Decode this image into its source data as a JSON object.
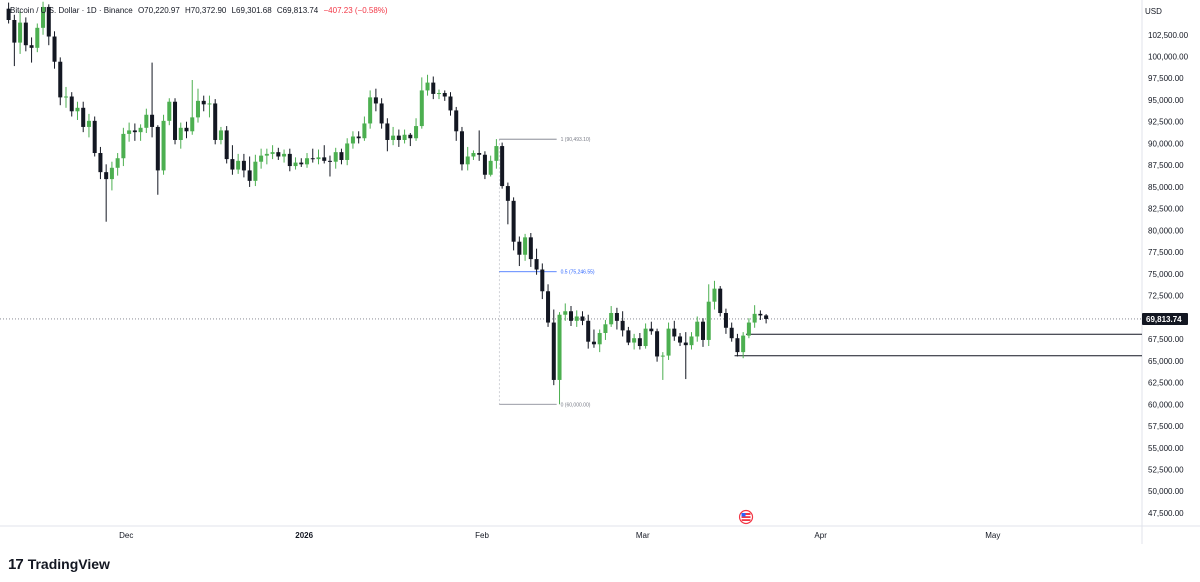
{
  "legend": {
    "symbol": "Bitcoin / U.S. Dollar · 1D · Binance",
    "open": "O70,220.97",
    "high": "H70,372.90",
    "low": "L69,301.68",
    "close": "C69,813.74",
    "change": "−407.23 (−0.58%)"
  },
  "branding": {
    "logo": "TradingView",
    "icon": "tradingview-logo-icon"
  },
  "colors": {
    "up": "#4caf50",
    "down": "#131722",
    "fib_mid": "#2962ff"
  },
  "chart_data": {
    "type": "candlestick",
    "currency": "USD",
    "ylim": [
      46000,
      106500
    ],
    "y_ticks": [
      47500,
      50000,
      52500,
      55000,
      57500,
      60000,
      62500,
      65000,
      67500,
      70000,
      72500,
      75000,
      77500,
      80000,
      82500,
      85000,
      87500,
      90000,
      92500,
      95000,
      97500,
      100000,
      102500
    ],
    "y_tick_labels": [
      "47,500.00",
      "50,000.00",
      "52,500.00",
      "55,000.00",
      "57,500.00",
      "60,000.00",
      "62,500.00",
      "65,000.00",
      "67,500.00",
      "70,000.00",
      "72,500.00",
      "75,000.00",
      "77,500.00",
      "80,000.00",
      "82,500.00",
      "85,000.00",
      "87,500.00",
      "90,000.00",
      "92,500.00",
      "95,000.00",
      "97,500.00",
      "100,000.00",
      "102,500.00"
    ],
    "x_ticks": [
      {
        "label": "Dec",
        "date": "2025-12-01",
        "bold": false
      },
      {
        "label": "2026",
        "date": "2026-01-01",
        "bold": true
      },
      {
        "label": "Feb",
        "date": "2026-02-01",
        "bold": false
      },
      {
        "label": "Mar",
        "date": "2026-03-01",
        "bold": false
      },
      {
        "label": "Apr",
        "date": "2026-04-01",
        "bold": false
      },
      {
        "label": "May",
        "date": "2026-05-01",
        "bold": false
      }
    ],
    "x_range": [
      "2025-11-09",
      "2026-05-27"
    ],
    "last_price": 69813.74,
    "last_price_label": "69,813.74",
    "candles": [
      {
        "d": "2025-11-10",
        "o": 105500,
        "h": 106200,
        "l": 103800,
        "c": 104200
      },
      {
        "d": "2025-11-11",
        "o": 104200,
        "h": 104800,
        "l": 98900,
        "c": 101600
      },
      {
        "d": "2025-11-12",
        "o": 101600,
        "h": 105200,
        "l": 100300,
        "c": 103900
      },
      {
        "d": "2025-11-13",
        "o": 103900,
        "h": 104500,
        "l": 100600,
        "c": 101300
      },
      {
        "d": "2025-11-14",
        "o": 101300,
        "h": 102200,
        "l": 99300,
        "c": 101000
      },
      {
        "d": "2025-11-15",
        "o": 101000,
        "h": 103800,
        "l": 100500,
        "c": 103300
      },
      {
        "d": "2025-11-16",
        "o": 103300,
        "h": 106300,
        "l": 102500,
        "c": 105700
      },
      {
        "d": "2025-11-17",
        "o": 105700,
        "h": 106000,
        "l": 101300,
        "c": 102300
      },
      {
        "d": "2025-11-18",
        "o": 102300,
        "h": 102900,
        "l": 98600,
        "c": 99400
      },
      {
        "d": "2025-11-19",
        "o": 99400,
        "h": 99900,
        "l": 94400,
        "c": 95300
      },
      {
        "d": "2025-11-20",
        "o": 95300,
        "h": 96500,
        "l": 94100,
        "c": 95400
      },
      {
        "d": "2025-11-21",
        "o": 95400,
        "h": 95900,
        "l": 93100,
        "c": 93700
      },
      {
        "d": "2025-11-22",
        "o": 93700,
        "h": 94800,
        "l": 92700,
        "c": 94100
      },
      {
        "d": "2025-11-23",
        "o": 94100,
        "h": 94800,
        "l": 91300,
        "c": 91900
      },
      {
        "d": "2025-11-24",
        "o": 91900,
        "h": 93400,
        "l": 90700,
        "c": 92600
      },
      {
        "d": "2025-11-25",
        "o": 92600,
        "h": 93100,
        "l": 88500,
        "c": 88900
      },
      {
        "d": "2025-11-26",
        "o": 88900,
        "h": 89600,
        "l": 85900,
        "c": 86700
      },
      {
        "d": "2025-11-27",
        "o": 86700,
        "h": 87600,
        "l": 81000,
        "c": 85900
      },
      {
        "d": "2025-11-28",
        "o": 85900,
        "h": 87900,
        "l": 84600,
        "c": 87200
      },
      {
        "d": "2025-11-29",
        "o": 87200,
        "h": 88900,
        "l": 86300,
        "c": 88300
      },
      {
        "d": "2025-11-30",
        "o": 88300,
        "h": 91800,
        "l": 87400,
        "c": 91100
      },
      {
        "d": "2025-12-01",
        "o": 91100,
        "h": 92400,
        "l": 90200,
        "c": 91500
      },
      {
        "d": "2025-12-02",
        "o": 91500,
        "h": 92300,
        "l": 90300,
        "c": 91300
      },
      {
        "d": "2025-12-03",
        "o": 91300,
        "h": 92200,
        "l": 90300,
        "c": 91800
      },
      {
        "d": "2025-12-04",
        "o": 91800,
        "h": 94000,
        "l": 91200,
        "c": 93300
      },
      {
        "d": "2025-12-05",
        "o": 93300,
        "h": 99300,
        "l": 90700,
        "c": 91900
      },
      {
        "d": "2025-12-06",
        "o": 91900,
        "h": 92100,
        "l": 84100,
        "c": 86900
      },
      {
        "d": "2025-12-07",
        "o": 86900,
        "h": 93300,
        "l": 86400,
        "c": 92600
      },
      {
        "d": "2025-12-08",
        "o": 92600,
        "h": 95200,
        "l": 92100,
        "c": 94800
      },
      {
        "d": "2025-12-09",
        "o": 94800,
        "h": 95200,
        "l": 89900,
        "c": 90400
      },
      {
        "d": "2025-12-10",
        "o": 90400,
        "h": 92400,
        "l": 89400,
        "c": 91800
      },
      {
        "d": "2025-12-11",
        "o": 91800,
        "h": 92500,
        "l": 90600,
        "c": 91400
      },
      {
        "d": "2025-12-12",
        "o": 91400,
        "h": 97300,
        "l": 91000,
        "c": 93000
      },
      {
        "d": "2025-12-13",
        "o": 93000,
        "h": 96300,
        "l": 92400,
        "c": 94900
      },
      {
        "d": "2025-12-14",
        "o": 94900,
        "h": 95500,
        "l": 93700,
        "c": 94500
      },
      {
        "d": "2025-12-15",
        "o": 94500,
        "h": 95500,
        "l": 93000,
        "c": 94600
      },
      {
        "d": "2025-12-16",
        "o": 94600,
        "h": 95100,
        "l": 89900,
        "c": 90400
      },
      {
        "d": "2025-12-17",
        "o": 90400,
        "h": 91900,
        "l": 89900,
        "c": 91500
      },
      {
        "d": "2025-12-18",
        "o": 91500,
        "h": 92000,
        "l": 87700,
        "c": 88200
      },
      {
        "d": "2025-12-19",
        "o": 88200,
        "h": 89800,
        "l": 86400,
        "c": 87000
      },
      {
        "d": "2025-12-20",
        "o": 87000,
        "h": 88800,
        "l": 86500,
        "c": 88000
      },
      {
        "d": "2025-12-21",
        "o": 88000,
        "h": 88800,
        "l": 86100,
        "c": 86900
      },
      {
        "d": "2025-12-22",
        "o": 86900,
        "h": 88500,
        "l": 85000,
        "c": 85700
      },
      {
        "d": "2025-12-23",
        "o": 85700,
        "h": 88700,
        "l": 85100,
        "c": 87900
      },
      {
        "d": "2025-12-24",
        "o": 87900,
        "h": 89400,
        "l": 87100,
        "c": 88600
      },
      {
        "d": "2025-12-25",
        "o": 88600,
        "h": 89400,
        "l": 87600,
        "c": 88800
      },
      {
        "d": "2025-12-26",
        "o": 88800,
        "h": 89800,
        "l": 88200,
        "c": 89000
      },
      {
        "d": "2025-12-27",
        "o": 89000,
        "h": 89500,
        "l": 88100,
        "c": 88500
      },
      {
        "d": "2025-12-28",
        "o": 88500,
        "h": 89300,
        "l": 87800,
        "c": 88800
      },
      {
        "d": "2025-12-29",
        "o": 88800,
        "h": 89400,
        "l": 86800,
        "c": 87400
      },
      {
        "d": "2025-12-30",
        "o": 87400,
        "h": 88400,
        "l": 87000,
        "c": 87800
      },
      {
        "d": "2025-12-31",
        "o": 87800,
        "h": 88300,
        "l": 87300,
        "c": 87600
      },
      {
        "d": "2026-01-01",
        "o": 87600,
        "h": 88900,
        "l": 87200,
        "c": 88300
      },
      {
        "d": "2026-01-02",
        "o": 88300,
        "h": 89400,
        "l": 87800,
        "c": 88200
      },
      {
        "d": "2026-01-03",
        "o": 88200,
        "h": 89300,
        "l": 87600,
        "c": 88400
      },
      {
        "d": "2026-01-04",
        "o": 88400,
        "h": 89800,
        "l": 87700,
        "c": 88000
      },
      {
        "d": "2026-01-05",
        "o": 88000,
        "h": 88600,
        "l": 86200,
        "c": 87900
      },
      {
        "d": "2026-01-06",
        "o": 87900,
        "h": 89500,
        "l": 87100,
        "c": 89000
      },
      {
        "d": "2026-01-07",
        "o": 89000,
        "h": 89400,
        "l": 87600,
        "c": 88100
      },
      {
        "d": "2026-01-08",
        "o": 88100,
        "h": 90600,
        "l": 87500,
        "c": 90000
      },
      {
        "d": "2026-01-09",
        "o": 90000,
        "h": 91400,
        "l": 89400,
        "c": 90800
      },
      {
        "d": "2026-01-10",
        "o": 90800,
        "h": 91400,
        "l": 90000,
        "c": 90600
      },
      {
        "d": "2026-01-11",
        "o": 90600,
        "h": 93100,
        "l": 90300,
        "c": 92300
      },
      {
        "d": "2026-01-12",
        "o": 92300,
        "h": 96100,
        "l": 91700,
        "c": 95300
      },
      {
        "d": "2026-01-13",
        "o": 95300,
        "h": 96300,
        "l": 93700,
        "c": 94600
      },
      {
        "d": "2026-01-14",
        "o": 94600,
        "h": 95200,
        "l": 91700,
        "c": 92300
      },
      {
        "d": "2026-01-15",
        "o": 92300,
        "h": 92900,
        "l": 89100,
        "c": 90400
      },
      {
        "d": "2026-01-16",
        "o": 90400,
        "h": 91900,
        "l": 89800,
        "c": 90900
      },
      {
        "d": "2026-01-17",
        "o": 90900,
        "h": 91600,
        "l": 89600,
        "c": 90400
      },
      {
        "d": "2026-01-18",
        "o": 90400,
        "h": 91600,
        "l": 90000,
        "c": 91000
      },
      {
        "d": "2026-01-19",
        "o": 91000,
        "h": 91200,
        "l": 89700,
        "c": 90600
      },
      {
        "d": "2026-01-20",
        "o": 90600,
        "h": 92900,
        "l": 90300,
        "c": 92000
      },
      {
        "d": "2026-01-21",
        "o": 92000,
        "h": 97600,
        "l": 91700,
        "c": 96100
      },
      {
        "d": "2026-01-22",
        "o": 96100,
        "h": 97900,
        "l": 95500,
        "c": 97000
      },
      {
        "d": "2026-01-23",
        "o": 97000,
        "h": 97700,
        "l": 95100,
        "c": 95700
      },
      {
        "d": "2026-01-24",
        "o": 95700,
        "h": 96200,
        "l": 95100,
        "c": 95800
      },
      {
        "d": "2026-01-25",
        "o": 95800,
        "h": 96100,
        "l": 94900,
        "c": 95400
      },
      {
        "d": "2026-01-26",
        "o": 95400,
        "h": 95900,
        "l": 93200,
        "c": 93800
      },
      {
        "d": "2026-01-27",
        "o": 93800,
        "h": 94200,
        "l": 90300,
        "c": 91400
      },
      {
        "d": "2026-01-28",
        "o": 91400,
        "h": 91900,
        "l": 86900,
        "c": 87600
      },
      {
        "d": "2026-01-29",
        "o": 87600,
        "h": 89600,
        "l": 86900,
        "c": 88500
      },
      {
        "d": "2026-01-30",
        "o": 88500,
        "h": 89200,
        "l": 88100,
        "c": 88900
      },
      {
        "d": "2026-01-31",
        "o": 88900,
        "h": 91500,
        "l": 88000,
        "c": 88700
      },
      {
        "d": "2026-02-01",
        "o": 88700,
        "h": 89100,
        "l": 85900,
        "c": 86400
      },
      {
        "d": "2026-02-02",
        "o": 86400,
        "h": 88600,
        "l": 86200,
        "c": 88000
      },
      {
        "d": "2026-02-03",
        "o": 88000,
        "h": 90500,
        "l": 87100,
        "c": 89700
      },
      {
        "d": "2026-02-04",
        "o": 89700,
        "h": 90100,
        "l": 84800,
        "c": 85100
      },
      {
        "d": "2026-02-05",
        "o": 85100,
        "h": 85500,
        "l": 80700,
        "c": 83400
      },
      {
        "d": "2026-02-06",
        "o": 83400,
        "h": 83800,
        "l": 77700,
        "c": 78700
      },
      {
        "d": "2026-02-07",
        "o": 78700,
        "h": 79300,
        "l": 75900,
        "c": 77200
      },
      {
        "d": "2026-02-08",
        "o": 77200,
        "h": 79600,
        "l": 76500,
        "c": 79200
      },
      {
        "d": "2026-02-09",
        "o": 79200,
        "h": 79700,
        "l": 75800,
        "c": 76700
      },
      {
        "d": "2026-02-10",
        "o": 76700,
        "h": 77900,
        "l": 74900,
        "c": 75500
      },
      {
        "d": "2026-02-11",
        "o": 75500,
        "h": 76200,
        "l": 72100,
        "c": 73000
      },
      {
        "d": "2026-02-12",
        "o": 73000,
        "h": 73800,
        "l": 68900,
        "c": 69400
      },
      {
        "d": "2026-02-13",
        "o": 69400,
        "h": 70900,
        "l": 62200,
        "c": 62800
      },
      {
        "d": "2026-02-14",
        "o": 62800,
        "h": 70600,
        "l": 60000,
        "c": 70300
      },
      {
        "d": "2026-02-15",
        "o": 70300,
        "h": 71600,
        "l": 69600,
        "c": 70700
      },
      {
        "d": "2026-02-16",
        "o": 70700,
        "h": 71300,
        "l": 69000,
        "c": 69600
      },
      {
        "d": "2026-02-17",
        "o": 69600,
        "h": 70800,
        "l": 68900,
        "c": 70100
      },
      {
        "d": "2026-02-18",
        "o": 70100,
        "h": 70700,
        "l": 69100,
        "c": 69600
      },
      {
        "d": "2026-02-19",
        "o": 69600,
        "h": 70300,
        "l": 66400,
        "c": 67200
      },
      {
        "d": "2026-02-20",
        "o": 67200,
        "h": 68600,
        "l": 66500,
        "c": 66900
      },
      {
        "d": "2026-02-21",
        "o": 66900,
        "h": 68600,
        "l": 66000,
        "c": 68200
      },
      {
        "d": "2026-02-22",
        "o": 68200,
        "h": 69700,
        "l": 67400,
        "c": 69200
      },
      {
        "d": "2026-02-23",
        "o": 69200,
        "h": 71300,
        "l": 68900,
        "c": 70500
      },
      {
        "d": "2026-02-24",
        "o": 70500,
        "h": 71100,
        "l": 68600,
        "c": 69600
      },
      {
        "d": "2026-02-25",
        "o": 69600,
        "h": 70700,
        "l": 67800,
        "c": 68500
      },
      {
        "d": "2026-02-26",
        "o": 68500,
        "h": 68900,
        "l": 66800,
        "c": 67100
      },
      {
        "d": "2026-02-27",
        "o": 67100,
        "h": 68100,
        "l": 66300,
        "c": 67600
      },
      {
        "d": "2026-02-28",
        "o": 67600,
        "h": 68200,
        "l": 66300,
        "c": 66700
      },
      {
        "d": "2026-03-01",
        "o": 66700,
        "h": 69300,
        "l": 66400,
        "c": 68700
      },
      {
        "d": "2026-03-02",
        "o": 68700,
        "h": 69500,
        "l": 68000,
        "c": 68400
      },
      {
        "d": "2026-03-03",
        "o": 68400,
        "h": 68700,
        "l": 64900,
        "c": 65500
      },
      {
        "d": "2026-03-04",
        "o": 65500,
        "h": 66000,
        "l": 62800,
        "c": 65600
      },
      {
        "d": "2026-03-05",
        "o": 65600,
        "h": 69400,
        "l": 65100,
        "c": 68700
      },
      {
        "d": "2026-03-06",
        "o": 68700,
        "h": 69600,
        "l": 67300,
        "c": 67800
      },
      {
        "d": "2026-03-07",
        "o": 67800,
        "h": 68200,
        "l": 66700,
        "c": 67100
      },
      {
        "d": "2026-03-08",
        "o": 67100,
        "h": 68300,
        "l": 62900,
        "c": 66800
      },
      {
        "d": "2026-03-09",
        "o": 66800,
        "h": 68300,
        "l": 66300,
        "c": 67800
      },
      {
        "d": "2026-03-10",
        "o": 67800,
        "h": 70100,
        "l": 67200,
        "c": 69500
      },
      {
        "d": "2026-03-11",
        "o": 69500,
        "h": 69900,
        "l": 66600,
        "c": 67400
      },
      {
        "d": "2026-03-12",
        "o": 67400,
        "h": 73800,
        "l": 66700,
        "c": 71800
      },
      {
        "d": "2026-03-13",
        "o": 71800,
        "h": 74200,
        "l": 70900,
        "c": 73300
      },
      {
        "d": "2026-03-14",
        "o": 73300,
        "h": 73600,
        "l": 70100,
        "c": 70500
      },
      {
        "d": "2026-03-15",
        "o": 70500,
        "h": 71000,
        "l": 68100,
        "c": 68800
      },
      {
        "d": "2026-03-16",
        "o": 68800,
        "h": 69400,
        "l": 67200,
        "c": 67600
      },
      {
        "d": "2026-03-17",
        "o": 67600,
        "h": 68100,
        "l": 65500,
        "c": 66000
      },
      {
        "d": "2026-03-18",
        "o": 66000,
        "h": 68300,
        "l": 65300,
        "c": 67900
      },
      {
        "d": "2026-03-19",
        "o": 67900,
        "h": 69900,
        "l": 67600,
        "c": 69400
      },
      {
        "d": "2026-03-20",
        "o": 69400,
        "h": 71400,
        "l": 68800,
        "c": 70400
      },
      {
        "d": "2026-03-21",
        "o": 70400,
        "h": 70800,
        "l": 69700,
        "c": 70221
      },
      {
        "d": "2026-03-22",
        "o": 70220.97,
        "h": 70372.9,
        "l": 69301.68,
        "c": 69813.74
      }
    ],
    "fib": {
      "x_start": "2026-02-04",
      "x_end": "2026-02-14",
      "levels": [
        {
          "price": 90493.1,
          "label": "1 (90,493.10)",
          "emphasis": false
        },
        {
          "price": 75246.55,
          "label": "0.5 (75,246.55)",
          "emphasis": true
        },
        {
          "price": 60000.0,
          "label": "0 (60,000.00)",
          "emphasis": false
        }
      ]
    },
    "horizontal_lines": [
      {
        "price": 68050,
        "x_start": "2026-03-19"
      },
      {
        "price": 65580,
        "x_start": "2026-03-17"
      }
    ],
    "event_marker": {
      "date": "2026-03-19",
      "icon": "us-flag-icon"
    }
  }
}
